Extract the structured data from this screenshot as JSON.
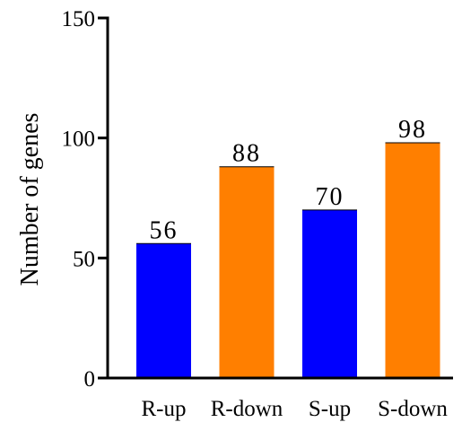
{
  "chart_data": {
    "type": "bar",
    "title": "",
    "xlabel": "",
    "ylabel": "Number of genes",
    "categories": [
      "R-up",
      "R-down",
      "S-up",
      "S-down"
    ],
    "values": [
      56,
      88,
      70,
      98
    ],
    "value_labels": [
      "56",
      "88",
      "70",
      "98"
    ],
    "colors": [
      "#0000ff",
      "#ff7f00",
      "#0000ff",
      "#ff7f00"
    ],
    "ylim": [
      0,
      150
    ],
    "yticks": [
      0,
      50,
      100,
      150
    ],
    "ytick_labels": [
      "0",
      "50",
      "100",
      "150"
    ],
    "grid": false,
    "legend": "none"
  }
}
